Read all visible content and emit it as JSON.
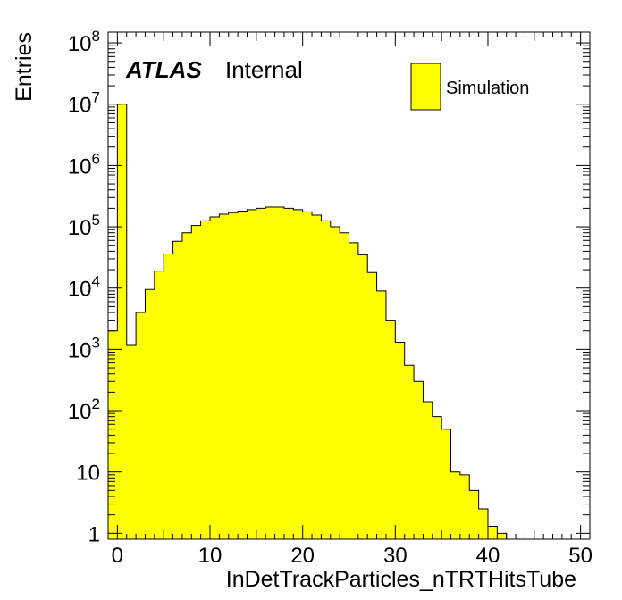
{
  "chart_data": {
    "type": "bar",
    "xlabel": "InDetTrackParticles_nTRTHitsTube",
    "ylabel": "Entries",
    "xlim": [
      -1,
      51
    ],
    "ylim": [
      0.8,
      150000000
    ],
    "y_scale": "log",
    "grid": false,
    "legend_position": "top-right",
    "bar_color": "#ffff00",
    "x_ticks": [
      "0",
      "10",
      "20",
      "30",
      "40",
      "50"
    ],
    "x_tick_values": [
      0,
      10,
      20,
      30,
      40,
      50
    ],
    "y_ticks": [
      {
        "value": 1,
        "base": "1",
        "exp": ""
      },
      {
        "value": 10,
        "base": "10",
        "exp": ""
      },
      {
        "value": 100,
        "base": "10",
        "exp": "2"
      },
      {
        "value": 1000,
        "base": "10",
        "exp": "3"
      },
      {
        "value": 10000,
        "base": "10",
        "exp": "4"
      },
      {
        "value": 100000,
        "base": "10",
        "exp": "5"
      },
      {
        "value": 1000000,
        "base": "10",
        "exp": "6"
      },
      {
        "value": 10000000,
        "base": "10",
        "exp": "7"
      },
      {
        "value": 100000000,
        "base": "10",
        "exp": "8"
      }
    ],
    "label_main": "ATLAS",
    "label_sub": "Internal",
    "series": [
      {
        "name": "Simulation",
        "bin_width": 1,
        "x": [
          -1,
          0,
          1,
          2,
          3,
          4,
          5,
          6,
          7,
          8,
          9,
          10,
          11,
          12,
          13,
          14,
          15,
          16,
          17,
          18,
          19,
          20,
          21,
          22,
          23,
          24,
          25,
          26,
          27,
          28,
          29,
          30,
          31,
          32,
          33,
          34,
          35,
          36,
          37,
          38,
          39,
          40,
          41
        ],
        "values": [
          2000,
          10000000,
          1200,
          4000,
          9500,
          19000,
          36000,
          58000,
          80000,
          105000,
          125000,
          145000,
          160000,
          170000,
          180000,
          190000,
          200000,
          210000,
          210000,
          200000,
          190000,
          175000,
          155000,
          125000,
          100000,
          80000,
          55000,
          35000,
          18000,
          9000,
          3000,
          1300,
          550,
          300,
          140,
          80,
          50,
          10,
          9,
          5,
          2.5,
          1.3,
          1
        ]
      }
    ]
  }
}
